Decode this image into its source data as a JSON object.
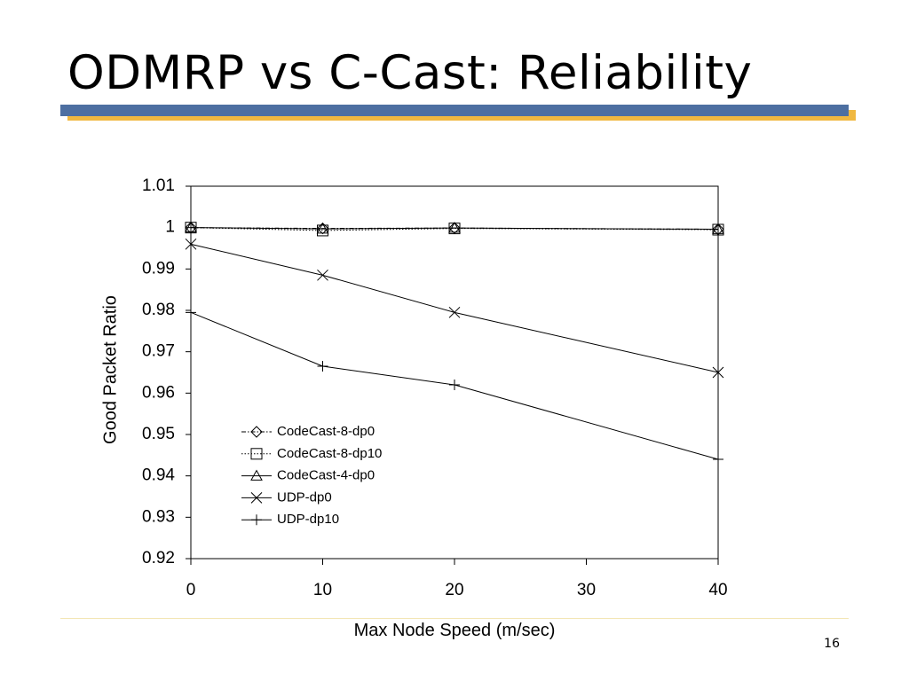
{
  "slide": {
    "title": "ODMRP vs C-Cast: Reliability",
    "page_number": "16"
  },
  "chart_data": {
    "type": "line",
    "title": "",
    "xlabel": "Max Node Speed (m/sec)",
    "ylabel": "Good Packet Ratio",
    "xlim": [
      0,
      40
    ],
    "ylim": [
      0.92,
      1.01
    ],
    "x_ticks": [
      "0",
      "10",
      "20",
      "30",
      "40"
    ],
    "y_ticks": [
      "0.92",
      "0.93",
      "0.94",
      "0.95",
      "0.96",
      "0.97",
      "0.98",
      "0.99",
      "1",
      "1.01"
    ],
    "grid": false,
    "legend_position": "lower-left inside",
    "series": [
      {
        "name": "CodeCast-8-dp0",
        "marker": "diamond",
        "dash": "dashdot",
        "x": [
          0,
          10,
          20,
          40
        ],
        "values": [
          1.0,
          0.9998,
          0.9999,
          0.9996
        ]
      },
      {
        "name": "CodeCast-8-dp10",
        "marker": "square",
        "dash": "dotted",
        "x": [
          0,
          10,
          20,
          40
        ],
        "values": [
          1.0,
          0.9993,
          0.9998,
          0.9995
        ]
      },
      {
        "name": "CodeCast-4-dp0",
        "marker": "triangle",
        "dash": "solid",
        "x": [
          0,
          10,
          20,
          40
        ],
        "values": [
          1.0,
          0.9997,
          0.9999,
          0.9996
        ]
      },
      {
        "name": "UDP-dp0",
        "marker": "x",
        "dash": "solid",
        "x": [
          0,
          10,
          20,
          40
        ],
        "values": [
          0.996,
          0.9885,
          0.9795,
          0.965
        ]
      },
      {
        "name": "UDP-dp10",
        "marker": "plus",
        "dash": "solid",
        "x": [
          0,
          10,
          20,
          40
        ],
        "values": [
          0.9795,
          0.9665,
          0.962,
          0.944
        ]
      }
    ]
  }
}
